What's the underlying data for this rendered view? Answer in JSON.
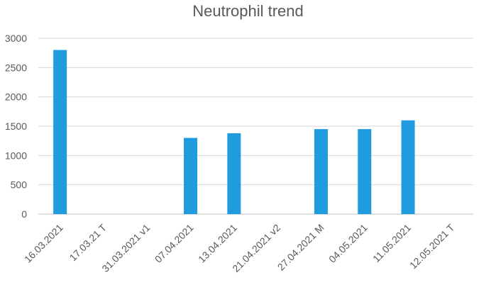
{
  "chart_data": {
    "type": "bar",
    "title": "Neutrophil trend",
    "xlabel": "",
    "ylabel": "",
    "categories": [
      "16.03.2021",
      "17.03.21 T",
      "31.03.2021 v1",
      "07.04.2021",
      "13.04.2021",
      "21.04.2021 v2",
      "27.04.2021 M",
      "04.05.2021",
      "11.05.2021",
      "12.05.2021 T"
    ],
    "values": [
      2800,
      null,
      null,
      1300,
      1380,
      null,
      1450,
      1450,
      1600,
      null
    ],
    "ylim": [
      0,
      3000
    ],
    "yticks": [
      "0",
      "500",
      "1000",
      "1500",
      "2000",
      "2500",
      "3000"
    ],
    "grid": true,
    "legend": "none",
    "bar_color": "#1f9bde"
  }
}
